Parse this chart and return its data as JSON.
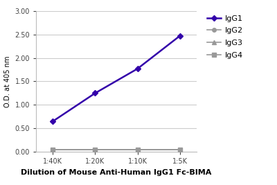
{
  "x_values": [
    1,
    2,
    3,
    4
  ],
  "x_tick_labels": [
    "1:40K",
    "1:20K",
    "1:10K",
    "1:5K"
  ],
  "series": {
    "IgG1": {
      "y": [
        0.65,
        1.25,
        1.77,
        2.47
      ],
      "color": "#3300aa",
      "marker": "D",
      "markersize": 4,
      "linewidth": 1.8,
      "zorder": 5
    },
    "IgG2": {
      "y": [
        0.04,
        0.04,
        0.04,
        0.04
      ],
      "color": "#999999",
      "marker": "o",
      "markersize": 4,
      "linewidth": 1.2,
      "zorder": 4
    },
    "IgG3": {
      "y": [
        0.04,
        0.04,
        0.04,
        0.04
      ],
      "color": "#999999",
      "marker": "^",
      "markersize": 4,
      "linewidth": 1.2,
      "zorder": 3
    },
    "IgG4": {
      "y": [
        0.05,
        0.05,
        0.05,
        0.05
      ],
      "color": "#999999",
      "marker": "s",
      "markersize": 4,
      "linewidth": 1.2,
      "zorder": 2
    }
  },
  "xlabel": "Dilution of Mouse Anti-Human IgG1 Fc-BIMA",
  "ylabel": "O.D. at 405 nm",
  "ylim": [
    0.0,
    3.0
  ],
  "yticks": [
    0.0,
    0.5,
    1.0,
    1.5,
    2.0,
    2.5,
    3.0
  ],
  "xlim": [
    0.6,
    4.4
  ],
  "background_color": "#ffffff",
  "grid_color": "#cccccc",
  "legend_labels": [
    "IgG1",
    "IgG2",
    "IgG3",
    "IgG4"
  ],
  "tick_fontsize": 7,
  "xlabel_fontsize": 8,
  "ylabel_fontsize": 7,
  "legend_fontsize": 8
}
